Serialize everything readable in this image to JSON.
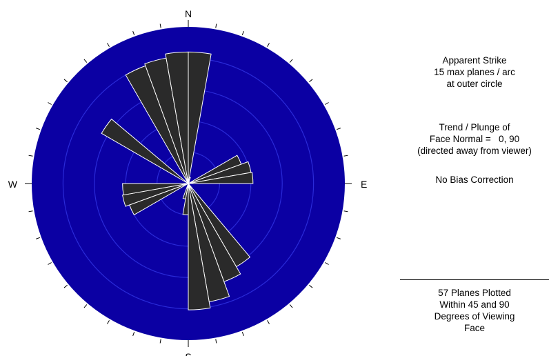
{
  "colors": {
    "background": "#ffffff",
    "disc": "#0b00a3",
    "rings": "#2a2ad8",
    "petal_fill": "#2a2a2a",
    "petal_stroke": "#ffffff",
    "ticks": "#000000"
  },
  "compass": {
    "north": "N",
    "south": "S",
    "east": "E",
    "west": "W"
  },
  "legend": {
    "line1": "Apparent Strike",
    "line2": "15 max planes / arc",
    "line3": "at outer circle"
  },
  "orientation": {
    "line1": "Trend / Plunge of",
    "line2": "Face Normal =   0, 90",
    "line3": "(directed away from viewer)"
  },
  "bias": {
    "line1": "No Bias Correction"
  },
  "summary": {
    "line1": "57 Planes Plotted",
    "line2": "Within 45 and 90",
    "line3": "Degrees of Viewing",
    "line4": "Face"
  },
  "chart_data": {
    "type": "rose",
    "bin_width_deg": 10,
    "max_count_outer_circle": 15,
    "ring_count": 5,
    "bins": [
      {
        "from": 0,
        "to": 10,
        "count": 12.6
      },
      {
        "from": 10,
        "to": 20,
        "count": 0.6
      },
      {
        "from": 20,
        "to": 30,
        "count": 0.2
      },
      {
        "from": 60,
        "to": 70,
        "count": 5.4
      },
      {
        "from": 70,
        "to": 80,
        "count": 6.1
      },
      {
        "from": 80,
        "to": 90,
        "count": 6.2
      },
      {
        "from": 140,
        "to": 150,
        "count": 9.2
      },
      {
        "from": 150,
        "to": 160,
        "count": 10.0
      },
      {
        "from": 160,
        "to": 170,
        "count": 11.5
      },
      {
        "from": 170,
        "to": 180,
        "count": 12.1
      },
      {
        "from": 180,
        "to": 190,
        "count": 3.0
      },
      {
        "from": 190,
        "to": 200,
        "count": 1.5
      },
      {
        "from": 240,
        "to": 250,
        "count": 6.0
      },
      {
        "from": 250,
        "to": 260,
        "count": 6.4
      },
      {
        "from": 260,
        "to": 270,
        "count": 6.3
      },
      {
        "from": 300,
        "to": 310,
        "count": 9.6
      },
      {
        "from": 330,
        "to": 340,
        "count": 12.0
      },
      {
        "from": 340,
        "to": 350,
        "count": 12.2
      },
      {
        "from": 350,
        "to": 360,
        "count": 12.6
      }
    ]
  }
}
